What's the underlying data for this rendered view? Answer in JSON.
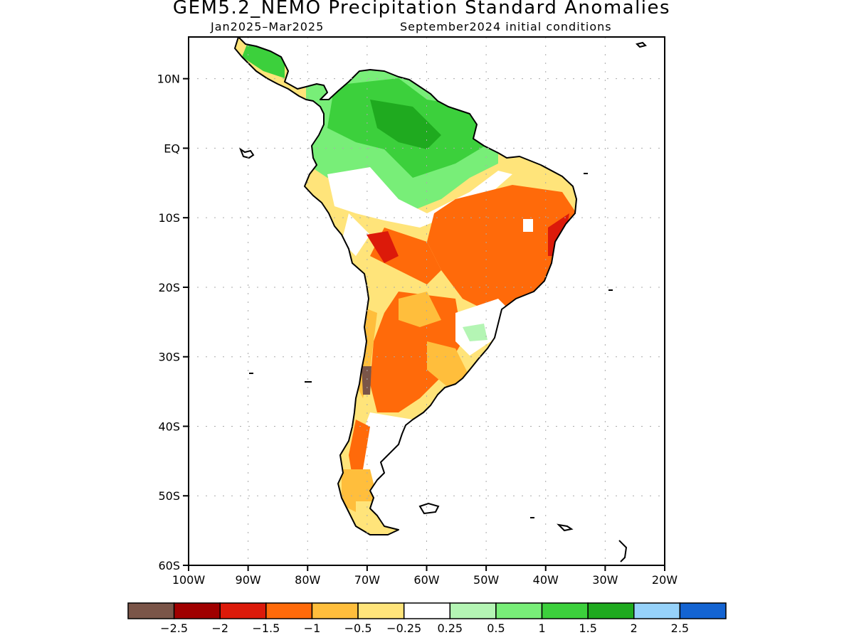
{
  "title": "GEM5.2_NEMO Precipitation Standard Anomalies",
  "subtitle_period": "Jan2025–Mar2025",
  "subtitle_init": "September2024 initial conditions",
  "map": {
    "projection": "lat-lon",
    "lon_range": [
      -100,
      -20
    ],
    "lat_range": [
      -60,
      16
    ],
    "lat_ticks": [
      {
        "value": 10,
        "label": "10N"
      },
      {
        "value": 0,
        "label": "EQ"
      },
      {
        "value": -10,
        "label": "10S"
      },
      {
        "value": -20,
        "label": "20S"
      },
      {
        "value": -30,
        "label": "30S"
      },
      {
        "value": -40,
        "label": "40S"
      },
      {
        "value": -50,
        "label": "50S"
      },
      {
        "value": -60,
        "label": "60S"
      }
    ],
    "lon_ticks": [
      {
        "value": -100,
        "label": "100W"
      },
      {
        "value": -90,
        "label": "90W"
      },
      {
        "value": -80,
        "label": "80W"
      },
      {
        "value": -70,
        "label": "70W"
      },
      {
        "value": -60,
        "label": "60W"
      },
      {
        "value": -50,
        "label": "50W"
      },
      {
        "value": -40,
        "label": "40W"
      },
      {
        "value": -30,
        "label": "30W"
      },
      {
        "value": -20,
        "label": "20W"
      }
    ],
    "grid": true
  },
  "colorbar": {
    "colors": [
      "#7a5548",
      "#a00000",
      "#dc1a0a",
      "#ff6a0a",
      "#ffbe3c",
      "#ffe47a",
      "#ffffff",
      "#b4f5b4",
      "#78ee78",
      "#3cd03c",
      "#1faa1f",
      "#96d2fa",
      "#1464d2"
    ],
    "labels": [
      "−2.5",
      "−2",
      "−1.5",
      "−1",
      "−0.5",
      "−0.25",
      "0.25",
      "0.5",
      "1",
      "1.5",
      "2",
      "2.5"
    ]
  },
  "colors": {
    "coast": "#000000",
    "grid": "#aaaaaa"
  }
}
